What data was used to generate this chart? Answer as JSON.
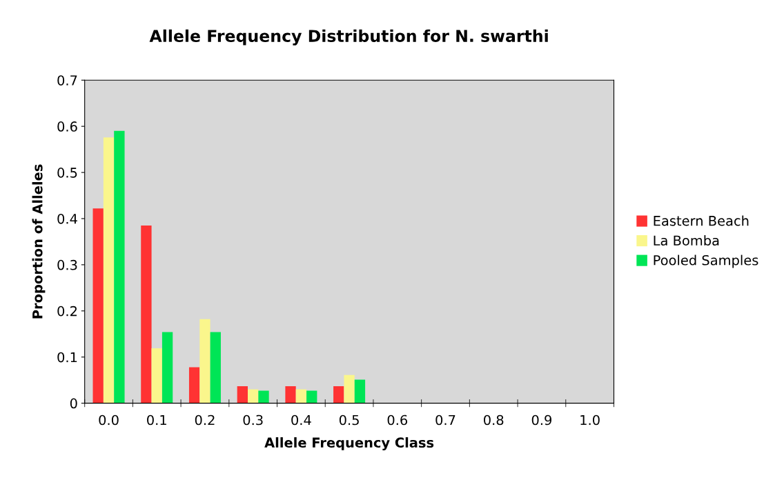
{
  "chart_data": {
    "type": "bar",
    "title": "Allele Frequency Distribution for N. swarthi",
    "xlabel": "Allele Frequency Class",
    "ylabel": "Proportion of Alleles",
    "categories": [
      "0.0",
      "0.1",
      "0.2",
      "0.3",
      "0.4",
      "0.5",
      "0.6",
      "0.7",
      "0.8",
      "0.9",
      "1.0"
    ],
    "series": [
      {
        "name": "Eastern Beach",
        "color": "#ff3333",
        "values": [
          0.422,
          0.385,
          0.078,
          0.037,
          0.037,
          0.037,
          0,
          0,
          0,
          0,
          0
        ]
      },
      {
        "name": "La Bomba",
        "color": "#faf68c",
        "values": [
          0.576,
          0.119,
          0.182,
          0.03,
          0.03,
          0.061,
          0,
          0,
          0,
          0,
          0
        ]
      },
      {
        "name": "Pooled Samples",
        "color": "#00e556",
        "values": [
          0.59,
          0.154,
          0.154,
          0.027,
          0.027,
          0.051,
          0,
          0,
          0,
          0,
          0
        ]
      }
    ],
    "ylim": [
      0,
      0.7
    ],
    "yticks": [
      0,
      0.1,
      0.2,
      0.3,
      0.4,
      0.5,
      0.6,
      0.7
    ],
    "grid": false,
    "legend": "right"
  }
}
